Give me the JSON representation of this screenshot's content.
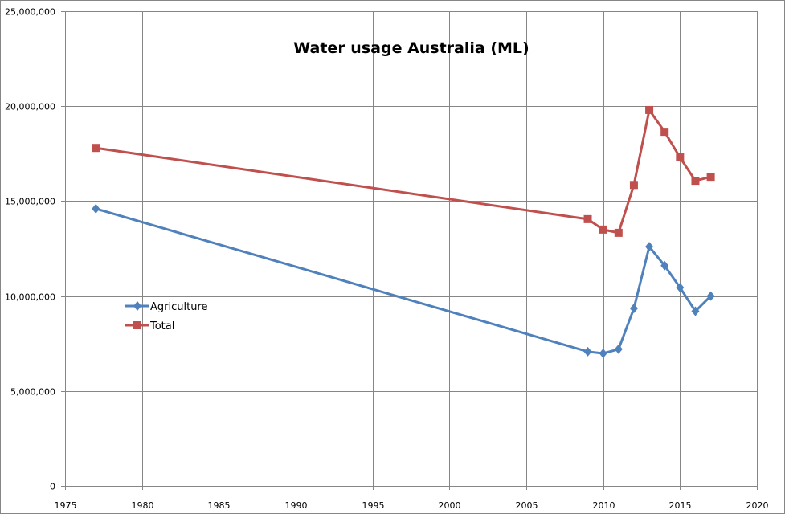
{
  "chart_data": {
    "type": "line",
    "title": "Water usage Australia (ML)",
    "xlabel": "",
    "ylabel": "",
    "xlim": [
      1975,
      2020
    ],
    "ylim": [
      0,
      25000000
    ],
    "x_ticks": [
      1975,
      1980,
      1985,
      1990,
      1995,
      2000,
      2005,
      2010,
      2015,
      2020
    ],
    "x_tick_labels": [
      "1975",
      "1980",
      "1985",
      "1990",
      "1995",
      "2000",
      "2005",
      "2010",
      "2015",
      "2020"
    ],
    "y_ticks": [
      0,
      5000000,
      10000000,
      15000000,
      20000000,
      25000000
    ],
    "y_tick_labels": [
      "0",
      "5,000,000",
      "10,000,000",
      "15,000,000",
      "20,000,000",
      "25,000,000"
    ],
    "grid": true,
    "legend_position": "left-middle",
    "series": [
      {
        "name": "Agriculture",
        "color": "#4F81BD",
        "marker": "diamond",
        "x": [
          1977,
          2009,
          2010,
          2011,
          2012,
          2013,
          2014,
          2015,
          2016,
          2017
        ],
        "values": [
          14600000,
          7070000,
          6980000,
          7200000,
          9350000,
          12600000,
          11600000,
          10450000,
          9200000,
          10000000
        ]
      },
      {
        "name": "Total",
        "color": "#C0504D",
        "marker": "square",
        "x": [
          1977,
          2009,
          2010,
          2011,
          2012,
          2013,
          2014,
          2015,
          2016,
          2017
        ],
        "values": [
          17800000,
          14050000,
          13500000,
          13330000,
          15850000,
          19800000,
          18650000,
          17300000,
          16070000,
          16280000
        ]
      }
    ]
  }
}
